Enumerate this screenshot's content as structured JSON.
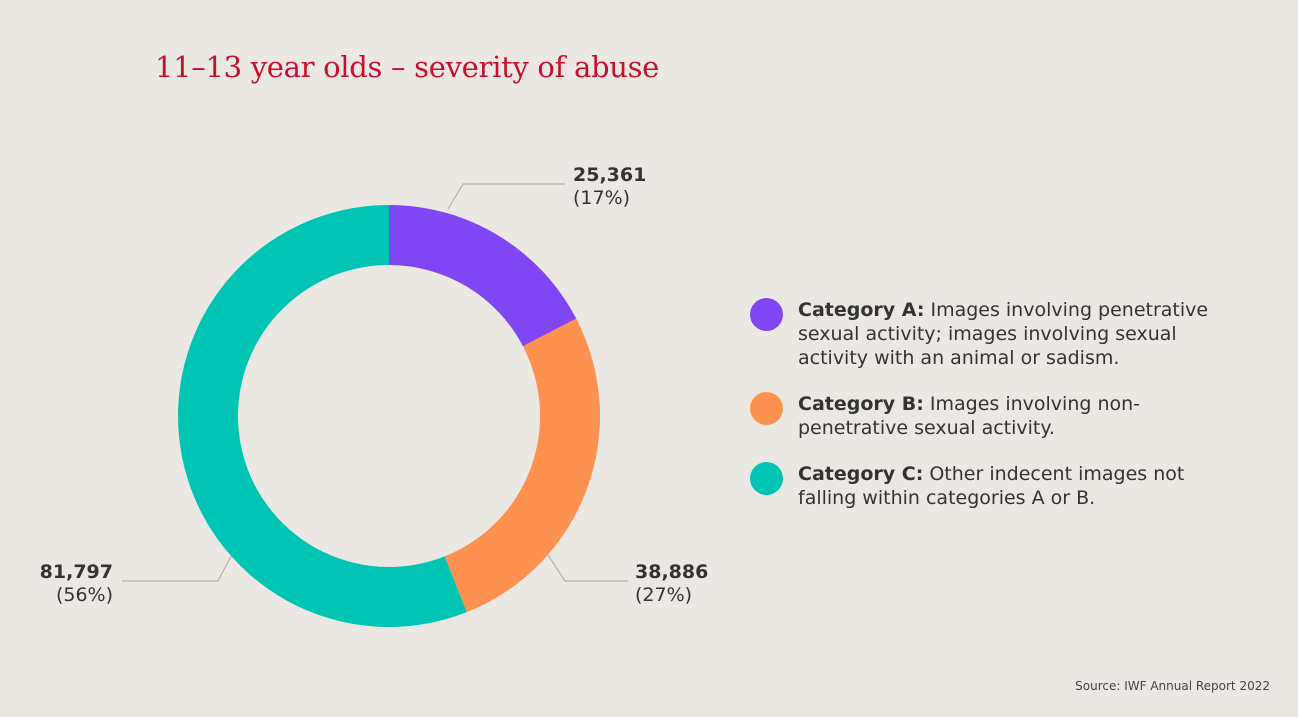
{
  "chart_data": {
    "type": "pie",
    "subtype": "donut",
    "title": "11–13 year olds – severity of abuse",
    "slices": [
      {
        "name": "Category A",
        "value": 25361,
        "value_label": "25,361",
        "percent_label": "(17%)",
        "color": "#8046f3",
        "legend_label": "Category A:",
        "legend_text": " Images involving penetrative sexual activity; images involving sexual activity with an animal or sadism."
      },
      {
        "name": "Category B",
        "value": 38886,
        "value_label": "38,886",
        "percent_label": "(27%)",
        "color": "#fc9150",
        "legend_label": "Category B:",
        "legend_text": " Images involving non-penetrative sexual activity."
      },
      {
        "name": "Category C",
        "value": 81797,
        "value_label": "81,797",
        "percent_label": "(56%)",
        "color": "#00c4b4",
        "legend_label": "Category C:",
        "legend_text": " Other indecent images not falling within categories A or B."
      }
    ],
    "legend_position": "right",
    "source": "Source: IWF Annual Report 2022"
  }
}
